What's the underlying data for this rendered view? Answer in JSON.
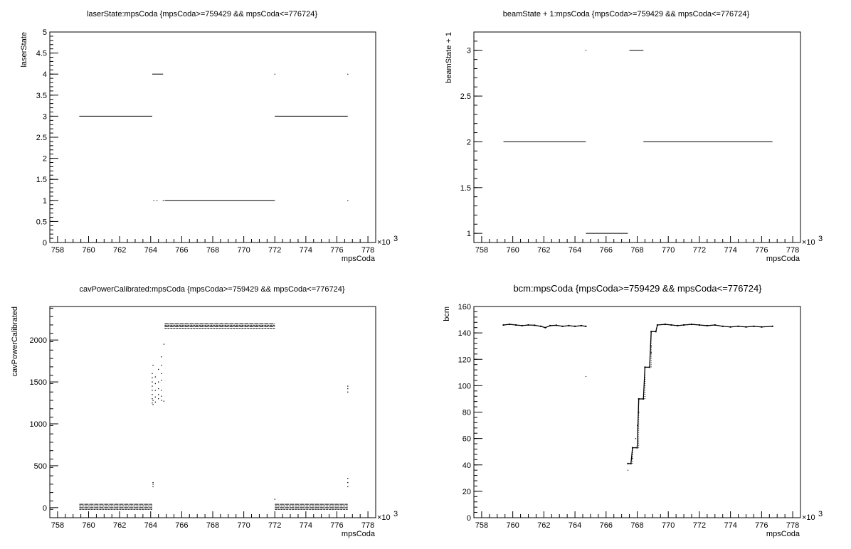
{
  "chart_data": [
    {
      "type": "scatter",
      "title": "laserState:mpsCoda {mpsCoda>=759429 && mpsCoda<=776724}",
      "xlabel": "mpsCoda",
      "ylabel": "laserState",
      "x_exponent": "×10",
      "x_exponent_power": "3",
      "xlim": [
        757.5,
        778.5
      ],
      "ylim": [
        0,
        5
      ],
      "x_ticks": [
        "758",
        "760",
        "762",
        "764",
        "766",
        "768",
        "770",
        "772",
        "774",
        "776",
        "778"
      ],
      "y_ticks": [
        "0",
        "0.5",
        "1",
        "1.5",
        "2",
        "2.5",
        "3",
        "3.5",
        "4",
        "4.5",
        "5"
      ],
      "segments": [
        {
          "x": [
            759.4,
            764.1
          ],
          "y": 3
        },
        {
          "x": [
            764.1,
            764.8
          ],
          "y": 4
        },
        {
          "x": [
            764.9,
            772.0
          ],
          "y": 1
        },
        {
          "x": [
            772.0,
            776.7
          ],
          "y": 3
        }
      ],
      "points": [
        [
          764.2,
          1
        ],
        [
          764.4,
          1
        ],
        [
          764.8,
          1
        ],
        [
          772.0,
          4
        ],
        [
          776.7,
          4
        ],
        [
          776.7,
          1
        ]
      ]
    },
    {
      "type": "scatter",
      "title": "beamState + 1:mpsCoda {mpsCoda>=759429 && mpsCoda<=776724}",
      "xlabel": "mpsCoda",
      "ylabel": "beamState + 1",
      "x_exponent": "×10",
      "x_exponent_power": "3",
      "xlim": [
        757.5,
        778.5
      ],
      "ylim": [
        0.9,
        3.2
      ],
      "x_ticks": [
        "758",
        "760",
        "762",
        "764",
        "766",
        "768",
        "770",
        "772",
        "774",
        "776",
        "778"
      ],
      "y_ticks": [
        "1",
        "1.5",
        "2",
        "2.5",
        "3"
      ],
      "y_tick_values": [
        1,
        1.5,
        2,
        2.5,
        3
      ],
      "segments": [
        {
          "x": [
            759.4,
            764.7
          ],
          "y": 2
        },
        {
          "x": [
            764.7,
            767.4
          ],
          "y": 1
        },
        {
          "x": [
            767.5,
            768.4
          ],
          "y": 3
        },
        {
          "x": [
            768.4,
            776.7
          ],
          "y": 2
        }
      ],
      "points": [
        [
          764.7,
          3
        ]
      ]
    },
    {
      "type": "scatter",
      "title": "cavPowerCalibrated:mpsCoda {mpsCoda>=759429 && mpsCoda<=776724}",
      "xlabel": "mpsCoda",
      "ylabel": "cavPowerCalibrated",
      "x_exponent": "×10",
      "x_exponent_power": "3",
      "xlim": [
        757.5,
        778.5
      ],
      "ylim": [
        -120,
        2400
      ],
      "x_ticks": [
        "758",
        "760",
        "762",
        "764",
        "766",
        "768",
        "770",
        "772",
        "774",
        "776",
        "778"
      ],
      "y_ticks": [
        "0",
        "500",
        "1000",
        "1500",
        "2000"
      ],
      "y_tick_values": [
        0,
        500,
        1000,
        1500,
        2000
      ],
      "bands": [
        {
          "x": [
            759.4,
            764.1
          ],
          "y": [
            -20,
            40
          ]
        },
        {
          "x": [
            772.0,
            776.7
          ],
          "y": [
            -20,
            40
          ]
        },
        {
          "x": [
            764.9,
            772.0
          ],
          "y": [
            2140,
            2195
          ]
        }
      ],
      "transition_points": [
        [
          764.1,
          1250
        ],
        [
          764.1,
          1300
        ],
        [
          764.1,
          1350
        ],
        [
          764.1,
          1400
        ],
        [
          764.1,
          1450
        ],
        [
          764.1,
          1500
        ],
        [
          764.1,
          1550
        ],
        [
          764.1,
          1600
        ],
        [
          764.15,
          1230
        ],
        [
          764.15,
          1280
        ],
        [
          764.15,
          1700
        ],
        [
          764.15,
          280
        ],
        [
          764.15,
          250
        ],
        [
          764.15,
          300
        ],
        [
          764.3,
          1260
        ],
        [
          764.3,
          1320
        ],
        [
          764.3,
          1400
        ],
        [
          764.3,
          1480
        ],
        [
          764.3,
          1560
        ],
        [
          764.5,
          1300
        ],
        [
          764.5,
          1350
        ],
        [
          764.5,
          1420
        ],
        [
          764.5,
          1500
        ],
        [
          764.5,
          1650
        ],
        [
          764.7,
          1280
        ],
        [
          764.7,
          1330
        ],
        [
          764.7,
          1400
        ],
        [
          764.7,
          1520
        ],
        [
          764.7,
          1600
        ],
        [
          764.7,
          1700
        ],
        [
          764.7,
          1800
        ],
        [
          764.85,
          1950
        ],
        [
          764.85,
          1270
        ],
        [
          772.0,
          100
        ],
        [
          776.7,
          250
        ],
        [
          776.7,
          300
        ],
        [
          776.7,
          350
        ],
        [
          776.7,
          1380
        ],
        [
          776.7,
          1420
        ],
        [
          776.7,
          1450
        ]
      ]
    },
    {
      "type": "scatter",
      "title": "bcm:mpsCoda {mpsCoda>=759429 && mpsCoda<=776724}",
      "xlabel": "mpsCoda",
      "ylabel": "bcm",
      "x_exponent": "×10",
      "x_exponent_power": "3",
      "xlim": [
        757.5,
        778.5
      ],
      "ylim": [
        0,
        160
      ],
      "x_ticks": [
        "758",
        "760",
        "762",
        "764",
        "766",
        "768",
        "770",
        "772",
        "774",
        "776",
        "778"
      ],
      "y_ticks": [
        "0",
        "20",
        "40",
        "60",
        "80",
        "100",
        "120",
        "140",
        "160"
      ],
      "y_tick_values": [
        0,
        20,
        40,
        60,
        80,
        100,
        120,
        140,
        160
      ],
      "series_points": [
        [
          759.4,
          146
        ],
        [
          759.8,
          146.5
        ],
        [
          760.2,
          146
        ],
        [
          760.6,
          145.5
        ],
        [
          761.0,
          146
        ],
        [
          761.4,
          145.8
        ],
        [
          761.8,
          145
        ],
        [
          762.1,
          144
        ],
        [
          762.4,
          145.5
        ],
        [
          762.8,
          145.8
        ],
        [
          763.2,
          145
        ],
        [
          763.6,
          145.5
        ],
        [
          764.0,
          145
        ],
        [
          764.4,
          145.5
        ],
        [
          764.7,
          145
        ],
        [
          767.4,
          41
        ],
        [
          767.6,
          41
        ],
        [
          767.7,
          53
        ],
        [
          768.0,
          53
        ],
        [
          768.1,
          90
        ],
        [
          768.4,
          90
        ],
        [
          768.5,
          114
        ],
        [
          768.8,
          114
        ],
        [
          768.9,
          141
        ],
        [
          769.2,
          141
        ],
        [
          769.3,
          146
        ],
        [
          769.8,
          146.5
        ],
        [
          770.2,
          146
        ],
        [
          770.6,
          145.5
        ],
        [
          771.0,
          146
        ],
        [
          771.5,
          146.5
        ],
        [
          772.0,
          146
        ],
        [
          772.5,
          145.5
        ],
        [
          773.0,
          146
        ],
        [
          773.5,
          145
        ],
        [
          774.0,
          144.5
        ],
        [
          774.5,
          145
        ],
        [
          775.0,
          144.5
        ],
        [
          775.5,
          145
        ],
        [
          776.0,
          144.5
        ],
        [
          776.7,
          145
        ]
      ],
      "sparse_points": [
        [
          764.7,
          107
        ],
        [
          767.4,
          36
        ],
        [
          767.7,
          45
        ],
        [
          767.9,
          60
        ],
        [
          768.0,
          70
        ],
        [
          768.1,
          80
        ],
        [
          768.5,
          100
        ],
        [
          768.9,
          125
        ],
        [
          768.9,
          130
        ]
      ]
    }
  ]
}
